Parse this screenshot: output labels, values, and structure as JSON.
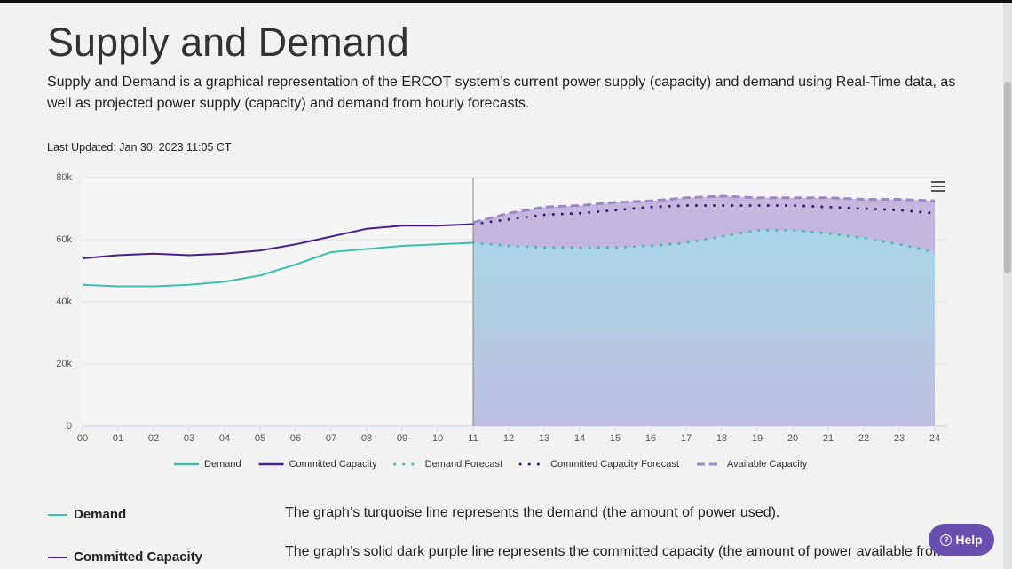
{
  "header": {
    "title": "Supply and Demand",
    "description": "Supply and Demand is a graphical representation of the ERCOT system’s current power supply (capacity) and demand using Real-Time data, as well as projected power supply (capacity) and demand from hourly forecasts.",
    "last_updated": "Last Updated: Jan 30, 2023 11:05 CT"
  },
  "chart_data": {
    "type": "line",
    "x": [
      0,
      1,
      2,
      3,
      4,
      5,
      6,
      7,
      8,
      9,
      10,
      11,
      12,
      13,
      14,
      15,
      16,
      17,
      18,
      19,
      20,
      21,
      22,
      23,
      24
    ],
    "xlim": [
      0,
      24
    ],
    "xticks": [
      {
        "value": 0,
        "label": "00"
      },
      {
        "value": 1,
        "label": "01"
      },
      {
        "value": 2,
        "label": "02"
      },
      {
        "value": 3,
        "label": "03"
      },
      {
        "value": 4,
        "label": "04"
      },
      {
        "value": 5,
        "label": "05"
      },
      {
        "value": 6,
        "label": "06"
      },
      {
        "value": 7,
        "label": "07"
      },
      {
        "value": 8,
        "label": "08"
      },
      {
        "value": 9,
        "label": "09"
      },
      {
        "value": 10,
        "label": "10"
      },
      {
        "value": 11,
        "label": "11"
      },
      {
        "value": 12,
        "label": "12"
      },
      {
        "value": 13,
        "label": "13"
      },
      {
        "value": 14,
        "label": "14"
      },
      {
        "value": 15,
        "label": "15"
      },
      {
        "value": 16,
        "label": "16"
      },
      {
        "value": 17,
        "label": "17"
      },
      {
        "value": 18,
        "label": "18"
      },
      {
        "value": 19,
        "label": "19"
      },
      {
        "value": 20,
        "label": "20"
      },
      {
        "value": 21,
        "label": "21"
      },
      {
        "value": 22,
        "label": "22"
      },
      {
        "value": 23,
        "label": "23"
      },
      {
        "value": 24,
        "label": "24"
      }
    ],
    "ylim": [
      0,
      80000
    ],
    "yticks": [
      0,
      {
        "value": 20000,
        "label": "20k"
      },
      {
        "value": 40000,
        "label": "40k"
      },
      {
        "value": 60000,
        "label": "60k"
      },
      {
        "value": 80000,
        "label": "80k"
      }
    ],
    "grid": true,
    "series": [
      {
        "name": "Demand",
        "color": "#3dbfb0",
        "dash": "solid",
        "values": [
          45500,
          45000,
          45000,
          45500,
          46500,
          48500,
          52000,
          56000,
          57000,
          58000,
          58500,
          59000,
          null,
          null,
          null,
          null,
          null,
          null,
          null,
          null,
          null,
          null,
          null,
          null,
          null
        ]
      },
      {
        "name": "Committed Capacity",
        "color": "#4a1f8c",
        "dash": "solid",
        "values": [
          54000,
          55000,
          55500,
          55000,
          55500,
          56500,
          58500,
          61000,
          63500,
          64500,
          64500,
          65000,
          null,
          null,
          null,
          null,
          null,
          null,
          null,
          null,
          null,
          null,
          null,
          null,
          null
        ]
      },
      {
        "name": "Demand Forecast",
        "color": "#3dbfb0",
        "dash": "dotted",
        "area_color": "#a9d6e6",
        "values": [
          null,
          null,
          null,
          null,
          null,
          null,
          null,
          null,
          null,
          null,
          null,
          59000,
          58000,
          57500,
          57500,
          57500,
          58000,
          59000,
          61000,
          63000,
          63000,
          62000,
          60500,
          58500,
          56000
        ]
      },
      {
        "name": "Committed Capacity Forecast",
        "color": "#3a1a7a",
        "dash": "dotted",
        "values": [
          null,
          null,
          null,
          null,
          null,
          null,
          null,
          null,
          null,
          null,
          null,
          65000,
          66500,
          68000,
          68500,
          69500,
          70500,
          71000,
          71000,
          71000,
          71000,
          70500,
          70000,
          69500,
          68500
        ]
      },
      {
        "name": "Available Capacity",
        "color": "#9c88c9",
        "dash": "dashed",
        "area_color": "#b8a8d8",
        "values": [
          null,
          null,
          null,
          null,
          null,
          null,
          null,
          null,
          null,
          null,
          null,
          65500,
          68500,
          70500,
          71000,
          72000,
          72500,
          73500,
          74000,
          73500,
          73500,
          73500,
          73000,
          73000,
          72500
        ]
      }
    ]
  },
  "legend_notes": [
    {
      "label": "Demand",
      "text": "The graph’s turquoise line represents the demand (the amount of power used)."
    },
    {
      "label": "Committed Capacity",
      "text": "The graph’s solid dark purple line represents the committed capacity (the amount of power available from"
    }
  ],
  "help_button": {
    "label": "Help"
  }
}
